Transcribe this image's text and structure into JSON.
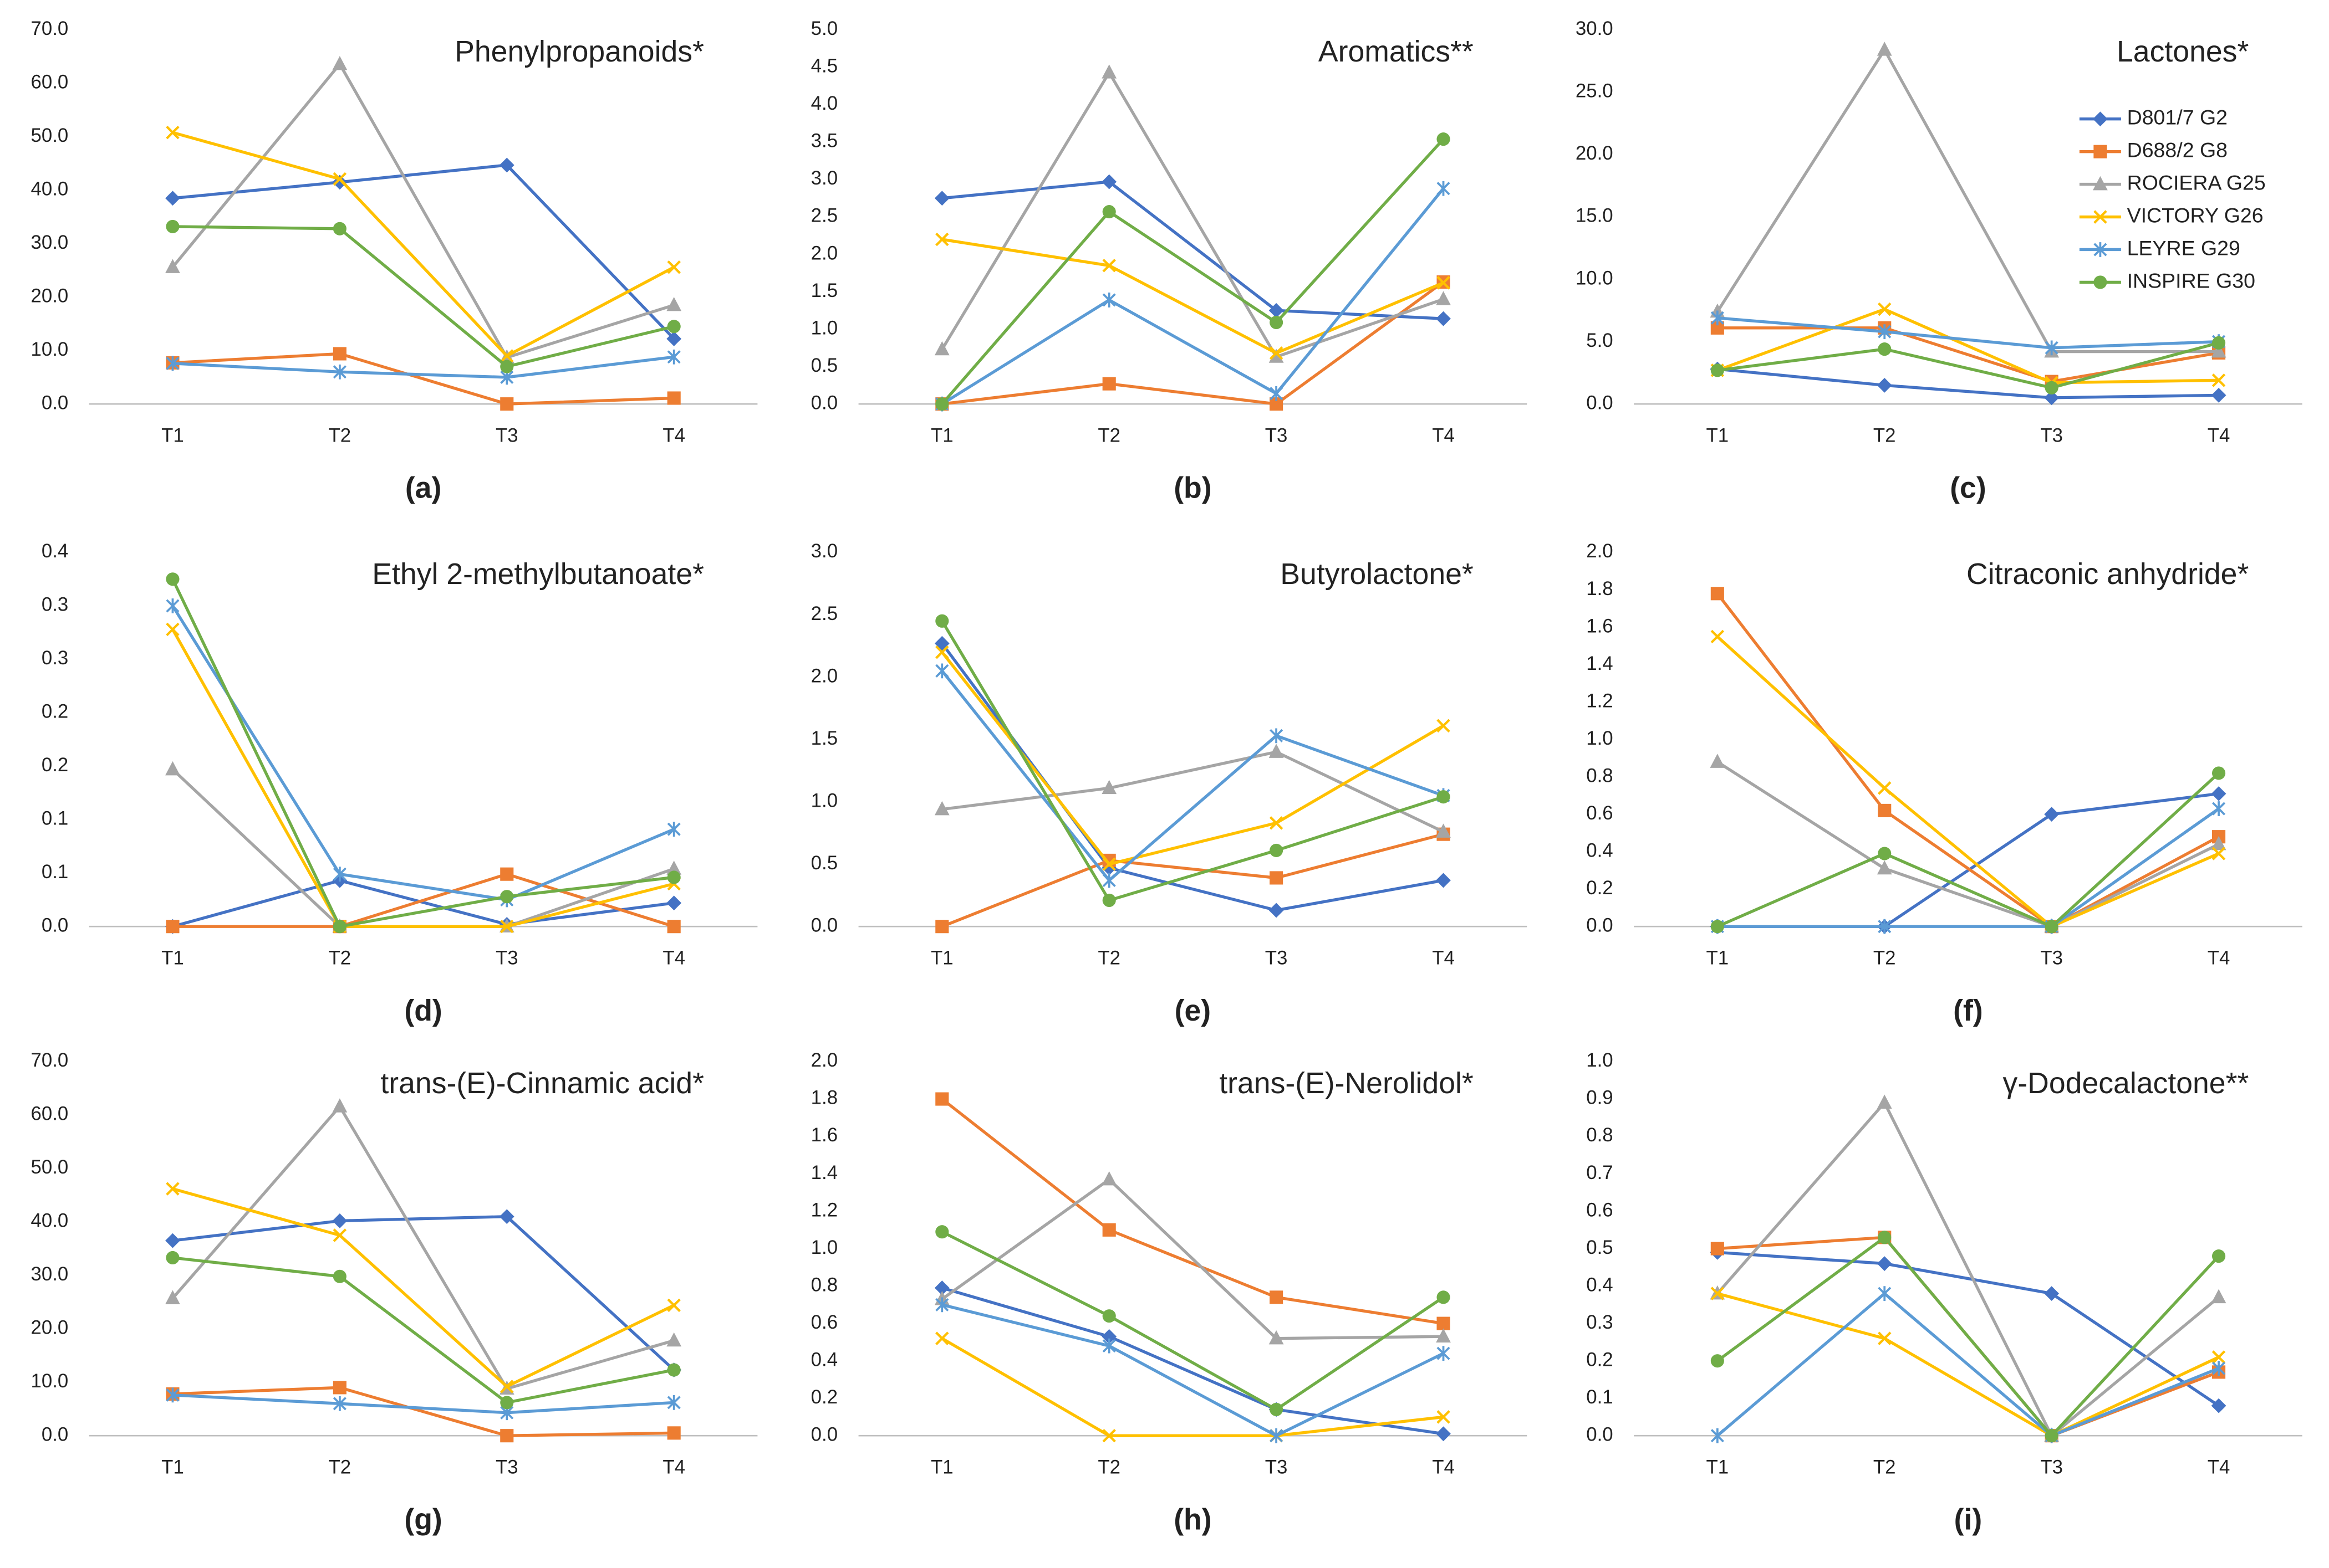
{
  "chart_data": [
    {
      "type": "line",
      "title": "Phenylpropanoids*",
      "label": "(a)",
      "categories": [
        "T1",
        "T2",
        "T3",
        "T4"
      ],
      "ylim": [
        0,
        70
      ],
      "yticks": [
        {
          "value": 0,
          "label": "0.0"
        },
        {
          "value": 10,
          "label": "10.0"
        },
        {
          "value": 20,
          "label": "20.0"
        },
        {
          "value": 30,
          "label": "30.0"
        },
        {
          "value": 40,
          "label": "40.0"
        },
        {
          "value": 50,
          "label": "50.0"
        },
        {
          "value": 60,
          "label": "60.0"
        },
        {
          "value": 70,
          "label": "70.0"
        }
      ],
      "series": [
        {
          "values": [
            38.5,
            41.5,
            44.7,
            12.2
          ]
        },
        {
          "values": [
            7.7,
            9.4,
            0,
            1.1
          ]
        },
        {
          "values": [
            25.6,
            63.6,
            8.7,
            18.5
          ]
        },
        {
          "values": [
            50.8,
            42.1,
            9.0,
            25.6
          ]
        },
        {
          "values": [
            7.6,
            6.0,
            5.0,
            8.8
          ]
        },
        {
          "values": [
            33.2,
            32.8,
            7.0,
            14.5
          ]
        }
      ]
    },
    {
      "type": "line",
      "title": "Aromatics**",
      "label": "(b)",
      "categories": [
        "T1",
        "T2",
        "T3",
        "T4"
      ],
      "ylim": [
        0,
        5
      ],
      "yticks": [
        {
          "value": 0,
          "label": "0.0"
        },
        0.5,
        {
          "value": 1,
          "label": "1.0"
        },
        1.5,
        {
          "value": 2,
          "label": "2.0"
        },
        2.5,
        {
          "value": 3,
          "label": "3.0"
        },
        3.5,
        {
          "value": 4,
          "label": "4.0"
        },
        4.5,
        {
          "value": 5,
          "label": "5.0"
        }
      ],
      "series": [
        {
          "values": [
            2.75,
            2.97,
            1.25,
            1.14
          ]
        },
        {
          "values": [
            0,
            0.27,
            0,
            1.63
          ]
        },
        {
          "values": [
            0.73,
            4.43,
            0.63,
            1.4
          ]
        },
        {
          "values": [
            2.2,
            1.85,
            0.68,
            1.62
          ]
        },
        {
          "values": [
            0,
            1.39,
            0.14,
            2.88
          ]
        },
        {
          "values": [
            0,
            2.57,
            1.09,
            3.54
          ]
        }
      ]
    },
    {
      "type": "line",
      "title": "Lactones*",
      "label": "(c)",
      "categories": [
        "T1",
        "T2",
        "T3",
        "T4"
      ],
      "ylim": [
        0,
        30
      ],
      "legend": "upper right",
      "yticks": [
        {
          "value": 0,
          "label": "0.0"
        },
        {
          "value": 5,
          "label": "5.0"
        },
        {
          "value": 10,
          "label": "10.0"
        },
        {
          "value": 15,
          "label": "15.0"
        },
        {
          "value": 20,
          "label": "20.0"
        },
        {
          "value": 25,
          "label": "25.0"
        },
        {
          "value": 30,
          "label": "30.0"
        }
      ],
      "series": [
        {
          "name": "D801/7 G2",
          "color": "#4472c4",
          "marker": "diamond",
          "values": [
            2.8,
            1.5,
            0.5,
            0.7
          ]
        },
        {
          "name": "D688/2 G8",
          "color": "#ed7d31",
          "marker": "square",
          "values": [
            6.1,
            6.1,
            1.8,
            4.1
          ]
        },
        {
          "name": "ROCIERA G25",
          "color": "#a5a5a5",
          "marker": "triangle",
          "values": [
            7.4,
            28.4,
            4.2,
            4.2
          ]
        },
        {
          "name": "VICTORY G26",
          "color": "#ffc000",
          "marker": "x",
          "values": [
            2.7,
            7.6,
            1.7,
            1.9
          ]
        },
        {
          "name": "LEYRE G29",
          "color": "#5b9bd5",
          "marker": "star",
          "values": [
            6.9,
            5.8,
            4.5,
            5.0
          ]
        },
        {
          "name": "INSPIRE G30",
          "color": "#70ad47",
          "marker": "circle",
          "values": [
            2.7,
            4.4,
            1.3,
            4.9
          ]
        }
      ]
    },
    {
      "type": "line",
      "title": "Ethyl 2-methylbutanoate*",
      "label": "(d)",
      "categories": [
        "T1",
        "T2",
        "T3",
        "T4"
      ],
      "ylim": [
        0,
        0.35
      ],
      "yticks": [
        {
          "value": 0,
          "label": "0.0"
        },
        {
          "value": 0.05,
          "label": "0.1"
        },
        {
          "value": 0.1,
          "label": "0.1"
        },
        {
          "value": 0.15,
          "label": "0.2"
        },
        {
          "value": 0.2,
          "label": "0.2"
        },
        {
          "value": 0.25,
          "label": "0.3"
        },
        {
          "value": 0.3,
          "label": "0.3"
        },
        {
          "value": 0.35,
          "label": "0.4"
        }
      ],
      "series": [
        {
          "values": [
            0,
            0.043,
            0.002,
            0.022
          ]
        },
        {
          "values": [
            0,
            0,
            0.049,
            0
          ]
        },
        {
          "values": [
            0.147,
            0,
            0,
            0.054
          ]
        },
        {
          "values": [
            0.278,
            0,
            0,
            0.04
          ]
        },
        {
          "values": [
            0.3,
            0.049,
            0.025,
            0.091
          ]
        },
        {
          "values": [
            0.325,
            0,
            0.028,
            0.046
          ]
        }
      ]
    },
    {
      "type": "line",
      "title": "Butyrolactone*",
      "label": "(e)",
      "categories": [
        "T1",
        "T2",
        "T3",
        "T4"
      ],
      "ylim": [
        0,
        3
      ],
      "yticks": [
        {
          "value": 0,
          "label": "0.0"
        },
        0.5,
        {
          "value": 1,
          "label": "1.0"
        },
        1.5,
        {
          "value": 2,
          "label": "2.0"
        },
        2.5,
        {
          "value": 3,
          "label": "3.0"
        }
      ],
      "series": [
        {
          "values": [
            2.27,
            0.47,
            0.13,
            0.37
          ]
        },
        {
          "values": [
            0,
            0.53,
            0.39,
            0.74
          ]
        },
        {
          "values": [
            0.94,
            1.11,
            1.4,
            0.76
          ]
        },
        {
          "values": [
            2.2,
            0.5,
            0.83,
            1.61
          ]
        },
        {
          "values": [
            2.05,
            0.37,
            1.53,
            1.05
          ]
        },
        {
          "values": [
            2.45,
            0.21,
            0.61,
            1.04
          ]
        }
      ]
    },
    {
      "type": "line",
      "title": "Citraconic anhydride*",
      "label": "(f)",
      "categories": [
        "T1",
        "T2",
        "T3",
        "T4"
      ],
      "ylim": [
        0,
        2
      ],
      "yticks": [
        {
          "value": 0,
          "label": "0.0"
        },
        0.2,
        0.4,
        0.6,
        0.8,
        {
          "value": 1,
          "label": "1.0"
        },
        1.2,
        1.4,
        1.6,
        1.8,
        {
          "value": 2,
          "label": "2.0"
        }
      ],
      "series": [
        {
          "values": [
            0,
            0,
            0.6,
            0.71
          ]
        },
        {
          "values": [
            1.78,
            0.62,
            0,
            0.48
          ]
        },
        {
          "values": [
            0.88,
            0.31,
            0,
            0.44
          ]
        },
        {
          "values": [
            1.55,
            0.74,
            0,
            0.39
          ]
        },
        {
          "values": [
            0,
            0,
            0,
            0.63
          ]
        },
        {
          "values": [
            0,
            0.39,
            0,
            0.82
          ]
        }
      ]
    },
    {
      "type": "line",
      "title": "trans-(E)-Cinnamic acid*",
      "label": "(g)",
      "categories": [
        "T1",
        "T2",
        "T3",
        "T4"
      ],
      "ylim": [
        0,
        70
      ],
      "yticks": [
        {
          "value": 0,
          "label": "0.0"
        },
        {
          "value": 10,
          "label": "10.0"
        },
        {
          "value": 20,
          "label": "20.0"
        },
        {
          "value": 30,
          "label": "30.0"
        },
        {
          "value": 40,
          "label": "40.0"
        },
        {
          "value": 50,
          "label": "50.0"
        },
        {
          "value": 60,
          "label": "60.0"
        },
        {
          "value": 70,
          "label": "70.0"
        }
      ],
      "series": [
        {
          "values": [
            36.5,
            40.2,
            41.0,
            12.3
          ]
        },
        {
          "values": [
            7.8,
            9.0,
            0,
            0.5
          ]
        },
        {
          "values": [
            25.7,
            61.6,
            8.8,
            17.8
          ]
        },
        {
          "values": [
            46.2,
            37.5,
            9.2,
            24.4
          ]
        },
        {
          "values": [
            7.6,
            6.0,
            4.3,
            6.2
          ]
        },
        {
          "values": [
            33.3,
            29.8,
            6.2,
            12.3
          ]
        }
      ]
    },
    {
      "type": "line",
      "title": "trans-(E)-Nerolidol*",
      "label": "(h)",
      "categories": [
        "T1",
        "T2",
        "T3",
        "T4"
      ],
      "ylim": [
        0,
        2
      ],
      "yticks": [
        {
          "value": 0,
          "label": "0.0"
        },
        0.2,
        0.4,
        0.6,
        0.8,
        {
          "value": 1,
          "label": "1.0"
        },
        1.2,
        1.4,
        1.6,
        1.8,
        {
          "value": 2,
          "label": "2.0"
        }
      ],
      "series": [
        {
          "values": [
            0.79,
            0.53,
            0.14,
            0.01
          ]
        },
        {
          "values": [
            1.8,
            1.1,
            0.74,
            0.6
          ]
        },
        {
          "values": [
            0.73,
            1.37,
            0.52,
            0.53
          ]
        },
        {
          "values": [
            0.52,
            0,
            0,
            0.1
          ]
        },
        {
          "values": [
            0.7,
            0.48,
            0,
            0.44
          ]
        },
        {
          "values": [
            1.09,
            0.64,
            0.14,
            0.74
          ]
        }
      ]
    },
    {
      "type": "line",
      "title": "γ-Dodecalactone**",
      "label": "(i)",
      "categories": [
        "T1",
        "T2",
        "T3",
        "T4"
      ],
      "ylim": [
        0,
        1
      ],
      "yticks": [
        {
          "value": 0,
          "label": "0.0"
        },
        0.1,
        0.2,
        0.3,
        0.4,
        0.5,
        0.6,
        0.7,
        0.8,
        0.9,
        {
          "value": 1,
          "label": "1.0"
        }
      ],
      "series": [
        {
          "values": [
            0.49,
            0.46,
            0.38,
            0.08
          ]
        },
        {
          "values": [
            0.5,
            0.53,
            0,
            0.17
          ]
        },
        {
          "values": [
            0.38,
            0.89,
            0,
            0.37
          ]
        },
        {
          "values": [
            0.38,
            0.26,
            0,
            0.21
          ]
        },
        {
          "values": [
            0,
            0.38,
            0,
            0.18
          ]
        },
        {
          "values": [
            0.2,
            0.53,
            0,
            0.48
          ]
        }
      ]
    }
  ]
}
